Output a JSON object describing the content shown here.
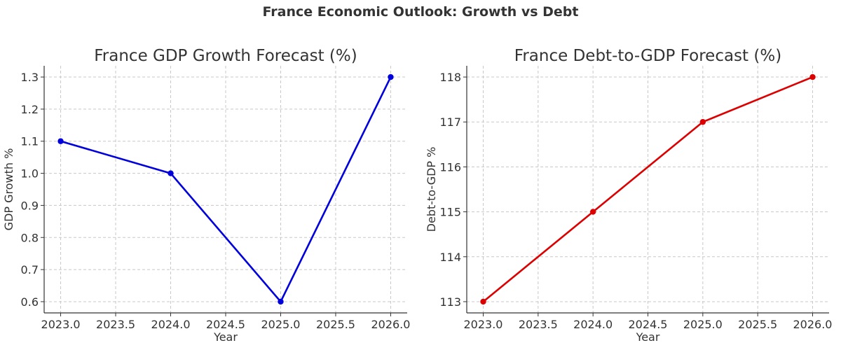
{
  "figure": {
    "suptitle": "France Economic Outlook: Growth vs Debt"
  },
  "chart_data": [
    {
      "type": "line",
      "title": "France GDP Growth Forecast (%)",
      "xlabel": "Year",
      "ylabel": "GDP Growth %",
      "x": [
        2023,
        2024,
        2025,
        2026
      ],
      "series": [
        {
          "values": [
            1.1,
            1.0,
            0.6,
            1.3
          ],
          "color": "#0000dd"
        }
      ],
      "xlim": [
        2022.85,
        2026.15
      ],
      "ylim": [
        0.565,
        1.335
      ],
      "xticks": [
        2023.0,
        2023.5,
        2024.0,
        2024.5,
        2025.0,
        2025.5,
        2026.0
      ],
      "xtick_labels": [
        "2023.0",
        "2023.5",
        "2024.0",
        "2024.5",
        "2025.0",
        "2025.5",
        "2026.0"
      ],
      "yticks": [
        0.6,
        0.7,
        0.8,
        0.9,
        1.0,
        1.1,
        1.2,
        1.3
      ],
      "ytick_labels": [
        "0.6",
        "0.7",
        "0.8",
        "0.9",
        "1.0",
        "1.1",
        "1.2",
        "1.3"
      ],
      "grid": true,
      "marker": "circle"
    },
    {
      "type": "line",
      "title": "France Debt-to-GDP Forecast (%)",
      "xlabel": "Year",
      "ylabel": "Debt-to-GDP %",
      "x": [
        2023,
        2024,
        2025,
        2026
      ],
      "series": [
        {
          "values": [
            113,
            115,
            117,
            118
          ],
          "color": "#dd0000"
        }
      ],
      "xlim": [
        2022.85,
        2026.15
      ],
      "ylim": [
        112.75,
        118.25
      ],
      "xticks": [
        2023.0,
        2023.5,
        2024.0,
        2024.5,
        2025.0,
        2025.5,
        2026.0
      ],
      "xtick_labels": [
        "2023.0",
        "2023.5",
        "2024.0",
        "2024.5",
        "2025.0",
        "2025.5",
        "2026.0"
      ],
      "yticks": [
        113,
        114,
        115,
        116,
        117,
        118
      ],
      "ytick_labels": [
        "113",
        "114",
        "115",
        "116",
        "117",
        "118"
      ],
      "grid": true,
      "marker": "circle"
    }
  ]
}
